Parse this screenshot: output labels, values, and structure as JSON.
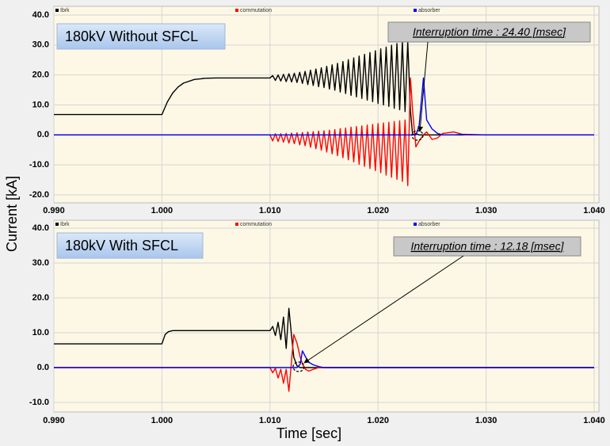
{
  "chart_data": [
    {
      "type": "line",
      "annotations": [
        "180kV Without SFCL",
        "Interruption time : 24.40 [msec]"
      ],
      "ylabel": "Current [kA]",
      "x": [
        0.99,
        1.0,
        1.0005,
        1.001,
        1.0015,
        1.002,
        1.003,
        1.004,
        1.005,
        1.01,
        1.01025,
        1.0105,
        1.01075,
        1.011,
        1.01125,
        1.0115,
        1.01175,
        1.012,
        1.01225,
        1.0125,
        1.01275,
        1.013,
        1.01325,
        1.0135,
        1.01375,
        1.014,
        1.01425,
        1.0145,
        1.01475,
        1.015,
        1.01525,
        1.0155,
        1.01575,
        1.016,
        1.01625,
        1.0165,
        1.01675,
        1.017,
        1.01725,
        1.0175,
        1.01775,
        1.018,
        1.01825,
        1.0185,
        1.01875,
        1.019,
        1.01925,
        1.0195,
        1.01975,
        1.02,
        1.02025,
        1.0205,
        1.02075,
        1.021,
        1.02125,
        1.0215,
        1.02175,
        1.022,
        1.02225,
        1.0225,
        1.02275,
        1.023,
        1.0232,
        1.0235,
        1.0238,
        1.0242,
        1.0245,
        1.025,
        1.0255,
        1.026,
        1.027,
        1.028,
        1.03,
        1.04
      ],
      "series": [
        {
          "name": "Ibrk",
          "color": "#000000",
          "values": [
            6.8,
            6.8,
            11,
            14,
            16,
            17.3,
            18.5,
            18.9,
            19,
            19,
            19.8,
            18.2,
            20.0,
            18.0,
            20.2,
            17.8,
            20.4,
            17.7,
            20.6,
            17.5,
            20.9,
            17.2,
            21.2,
            16.8,
            21.6,
            16.5,
            22.0,
            16.1,
            22.4,
            15.8,
            22.9,
            15.3,
            23.4,
            14.9,
            23.9,
            14.3,
            24.5,
            13.8,
            25.1,
            13.2,
            25.7,
            12.7,
            26.3,
            12.2,
            26.9,
            11.6,
            27.5,
            11.1,
            28.1,
            10.5,
            28.7,
            10.0,
            29.3,
            9.5,
            29.9,
            8.9,
            30.5,
            8.4,
            31.1,
            7.8,
            31.0,
            8,
            0,
            0.5,
            0,
            0,
            0,
            0,
            0,
            0,
            0,
            0,
            0,
            0
          ]
        },
        {
          "name": "commutation",
          "color": "#ff0000",
          "values": [
            0,
            0,
            0,
            0,
            0,
            0,
            0,
            0,
            0,
            0,
            -2.0,
            0.4,
            -2.2,
            0.4,
            -2.4,
            0.5,
            -2.7,
            0.6,
            -2.9,
            0.7,
            -3.3,
            0.8,
            -3.6,
            1.0,
            -4.1,
            1.1,
            -4.6,
            1.3,
            -5.1,
            1.4,
            -5.7,
            1.6,
            -6.3,
            1.8,
            -6.9,
            2.1,
            -7.6,
            2.3,
            -8.3,
            2.6,
            -9.0,
            2.8,
            -9.8,
            3.0,
            -10.5,
            3.3,
            -11.2,
            3.5,
            -11.9,
            3.8,
            -12.6,
            4.0,
            -13.4,
            4.2,
            -14.1,
            4.5,
            -14.8,
            4.7,
            -15.5,
            5.0,
            -16.9,
            19,
            8,
            -4,
            -2,
            0,
            1,
            -1.5,
            -1,
            0.5,
            1,
            0,
            0,
            0
          ]
        },
        {
          "name": "absorber",
          "color": "#0000ff",
          "values": [
            0,
            0,
            0,
            0,
            0,
            0,
            0,
            0,
            0,
            0,
            0,
            0,
            0,
            0,
            0,
            0,
            0,
            0,
            0,
            0,
            0,
            0,
            0,
            0,
            0,
            0,
            0,
            0,
            0,
            0,
            0,
            0,
            0,
            0,
            0,
            0,
            0,
            0,
            0,
            0,
            0,
            0,
            0,
            0,
            0,
            0,
            0,
            0,
            0,
            0,
            0,
            0,
            0,
            0,
            0,
            0,
            0,
            0,
            0,
            0,
            0,
            0,
            0,
            0,
            3,
            19,
            5,
            2,
            0.5,
            0,
            0,
            0.2,
            0,
            0
          ]
        }
      ],
      "xlim": [
        0.99,
        1.04
      ],
      "xticks": [
        {
          "value": 0.99,
          "label": "0.990"
        },
        {
          "value": 1.0,
          "label": "1.000"
        },
        {
          "value": 1.01,
          "label": "1.010"
        },
        {
          "value": 1.02,
          "label": "1.020"
        },
        {
          "value": 1.03,
          "label": "1.030"
        },
        {
          "value": 1.04,
          "label": "1.040"
        }
      ],
      "ylim": [
        -20,
        40
      ],
      "yticks": [
        {
          "value": -20,
          "label": "-20.0"
        },
        {
          "value": -10,
          "label": "-10.0"
        },
        {
          "value": 0,
          "label": "0.0"
        },
        {
          "value": 10,
          "label": "10.0"
        },
        {
          "value": 20,
          "label": "20.0"
        },
        {
          "value": 30,
          "label": "30.0"
        },
        {
          "value": 40,
          "label": "40.0"
        }
      ],
      "grid": true
    },
    {
      "type": "line",
      "annotations": [
        "180kV With SFCL",
        "Interruption time : 12.18 [msec]"
      ],
      "xlabel": "Time [sec]",
      "x": [
        0.99,
        1.0,
        1.0003,
        1.0006,
        1.001,
        1.002,
        1.01,
        1.01025,
        1.0105,
        1.01075,
        1.011,
        1.01125,
        1.0115,
        1.01175,
        1.012,
        1.0122,
        1.0125,
        1.0128,
        1.013,
        1.0133,
        1.0136,
        1.014,
        1.0145,
        1.015,
        1.02,
        1.04
      ],
      "series": [
        {
          "name": "Ibrk",
          "color": "#000000",
          "values": [
            6.8,
            6.8,
            9.5,
            10.3,
            10.6,
            10.6,
            10.6,
            11.8,
            9.2,
            13,
            8,
            14.5,
            5.5,
            17,
            9,
            3,
            0.5,
            0,
            0,
            0,
            0,
            0,
            0,
            0,
            0,
            0
          ]
        },
        {
          "name": "commutation",
          "color": "#ff0000",
          "values": [
            0,
            0,
            0,
            0,
            0,
            0,
            0,
            -1.5,
            -0.2,
            -3,
            -0.5,
            -4.5,
            -0.5,
            -6.8,
            2,
            9.5,
            7,
            3,
            1,
            -0.5,
            -1,
            -0.5,
            0,
            0,
            0,
            0
          ]
        },
        {
          "name": "absorber",
          "color": "#0000ff",
          "values": [
            0,
            0,
            0,
            0,
            0,
            0,
            0,
            0,
            0,
            0,
            0,
            0,
            0,
            0,
            0,
            0,
            0,
            1,
            4.8,
            3,
            1.5,
            0.8,
            0.3,
            0,
            0,
            0
          ]
        }
      ],
      "xlim": [
        0.99,
        1.04
      ],
      "xticks": [
        {
          "value": 0.99,
          "label": "0.990"
        },
        {
          "value": 1.0,
          "label": "1.000"
        },
        {
          "value": 1.01,
          "label": "1.010"
        },
        {
          "value": 1.02,
          "label": "1.020"
        },
        {
          "value": 1.03,
          "label": "1.030"
        },
        {
          "value": 1.04,
          "label": "1.040"
        }
      ],
      "ylim": [
        -10,
        40
      ],
      "yticks": [
        {
          "value": -10,
          "label": "-10.0"
        },
        {
          "value": 0,
          "label": "0.0"
        },
        {
          "value": 10,
          "label": "10.0"
        },
        {
          "value": 20,
          "label": "20.0"
        },
        {
          "value": 30,
          "label": "30.0"
        },
        {
          "value": 40,
          "label": "40.0"
        }
      ],
      "grid": true
    }
  ]
}
